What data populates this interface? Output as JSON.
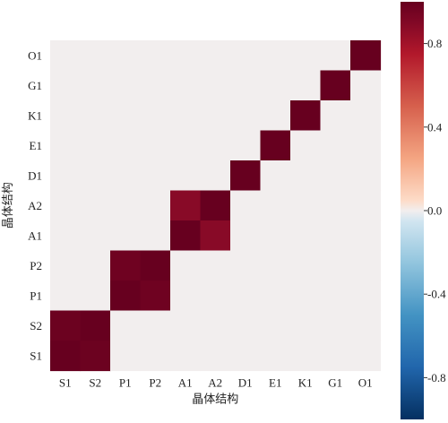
{
  "chart_data": {
    "type": "heatmap",
    "title": "",
    "xlabel": "晶体结构",
    "ylabel": "晶体结构",
    "x_categories": [
      "S1",
      "S2",
      "P1",
      "P2",
      "A1",
      "A2",
      "D1",
      "E1",
      "K1",
      "G1",
      "O1"
    ],
    "y_categories_top_to_bottom": [
      "O1",
      "G1",
      "K1",
      "E1",
      "D1",
      "A2",
      "A1",
      "P2",
      "P1",
      "S2",
      "S1"
    ],
    "matrix_rows_top_to_bottom": [
      [
        0,
        0,
        0,
        0,
        0,
        0,
        0,
        0,
        0,
        0,
        1
      ],
      [
        0,
        0,
        0,
        0,
        0,
        0,
        0,
        0,
        0,
        1,
        0
      ],
      [
        0,
        0,
        0,
        0,
        0,
        0,
        0,
        0,
        1,
        0,
        0
      ],
      [
        0,
        0,
        0,
        0,
        0,
        0,
        0,
        1,
        0,
        0,
        0
      ],
      [
        0,
        0,
        0,
        0,
        0,
        0,
        1,
        0,
        0,
        0,
        0
      ],
      [
        0,
        0,
        0,
        0,
        0.88,
        1,
        0,
        0,
        0,
        0,
        0
      ],
      [
        0,
        0,
        0,
        0,
        1,
        0.88,
        0,
        0,
        0,
        0,
        0
      ],
      [
        0,
        0,
        0.97,
        1,
        0,
        0,
        0,
        0,
        0,
        0,
        0
      ],
      [
        0,
        0,
        1,
        0.97,
        0,
        0,
        0,
        0,
        0,
        0,
        0
      ],
      [
        0.98,
        1,
        0,
        0,
        0,
        0,
        0,
        0,
        0,
        0,
        0
      ],
      [
        1,
        0.98,
        0,
        0,
        0,
        0,
        0,
        0,
        0,
        0,
        0
      ]
    ],
    "colorbar": {
      "range": [
        -1,
        1
      ],
      "ticks": [
        0.8,
        0.4,
        0.0,
        -0.4,
        -0.8
      ],
      "tick_labels": [
        "0.8",
        "0.4",
        "0.0",
        "-0.4",
        "-0.8"
      ],
      "colormap": "RdBu_r"
    },
    "grid": false,
    "colors": {
      "zero": "#f2eeee",
      "max": "#67001f",
      "min": "#053061"
    }
  }
}
